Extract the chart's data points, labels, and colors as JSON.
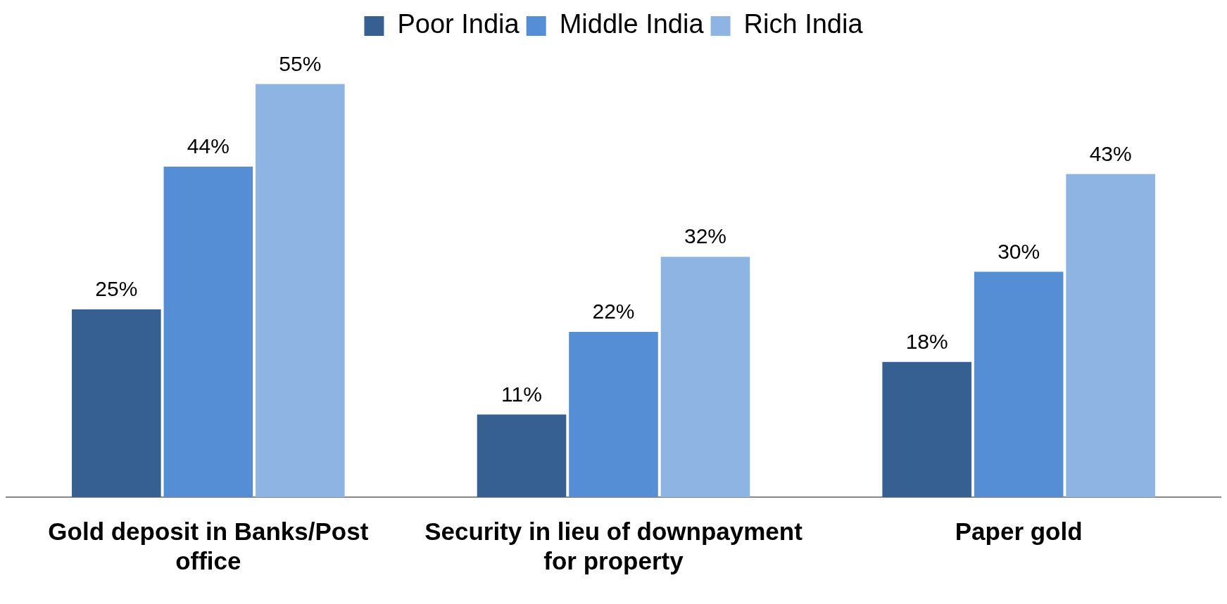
{
  "chart_data": {
    "type": "bar",
    "categories": [
      "Gold deposit in Banks/Post office",
      "Security in lieu of downpayment for property",
      "Paper gold"
    ],
    "series": [
      {
        "name": "Poor India",
        "color": "#366092",
        "values": [
          25,
          11,
          18
        ],
        "value_labels": [
          "25%",
          "11%",
          "18%"
        ]
      },
      {
        "name": "Middle India",
        "color": "#558ed5",
        "values": [
          44,
          22,
          30
        ],
        "value_labels": [
          "44%",
          "22%",
          "30%"
        ]
      },
      {
        "name": "Rich India",
        "color": "#8eb4e3",
        "values": [
          55,
          32,
          43
        ],
        "value_labels": [
          "55%",
          "32%",
          "43%"
        ]
      }
    ],
    "tick_labels": "x",
    "grid": false,
    "legend": "top"
  }
}
